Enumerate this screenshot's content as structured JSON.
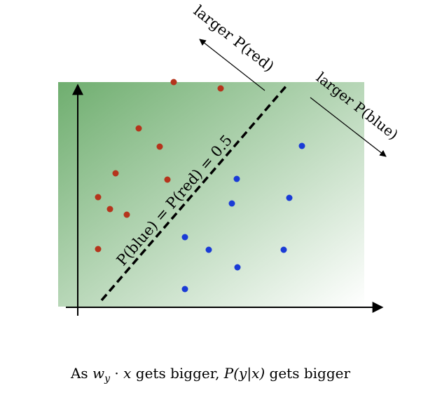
{
  "colors": {
    "red_point": "#b5341c",
    "blue_point": "#1a3bd6",
    "background_gradient_dark": "#6fae6f",
    "background_gradient_light": "#ffffff",
    "axis": "#000000"
  },
  "labels": {
    "larger_red": "larger P(red)",
    "larger_blue": "larger P(blue)",
    "boundary": "P(blue) = P(red) = 0.5"
  },
  "caption": {
    "part1": "As ",
    "math1": "w",
    "math1_sub": "y",
    "part2": " · ",
    "math2": "x",
    "part3": " gets bigger, ",
    "math3": "P(y|x)",
    "part4": " gets bigger"
  },
  "chart_data": {
    "type": "scatter",
    "series": [
      {
        "name": "",
        "color": "red",
        "points": [
          [
            248,
            117
          ],
          [
            315,
            126
          ],
          [
            198,
            183
          ],
          [
            228,
            209
          ],
          [
            165,
            247
          ],
          [
            239,
            256
          ],
          [
            140,
            281
          ],
          [
            157,
            298
          ],
          [
            181,
            306
          ],
          [
            140,
            355
          ]
        ]
      },
      {
        "name": "",
        "color": "blue",
        "points": [
          [
            431,
            208
          ],
          [
            338,
            255
          ],
          [
            413,
            282
          ],
          [
            331,
            290
          ],
          [
            264,
            338
          ],
          [
            298,
            356
          ],
          [
            405,
            356
          ],
          [
            339,
            381
          ],
          [
            264,
            412
          ]
        ]
      }
    ]
  }
}
